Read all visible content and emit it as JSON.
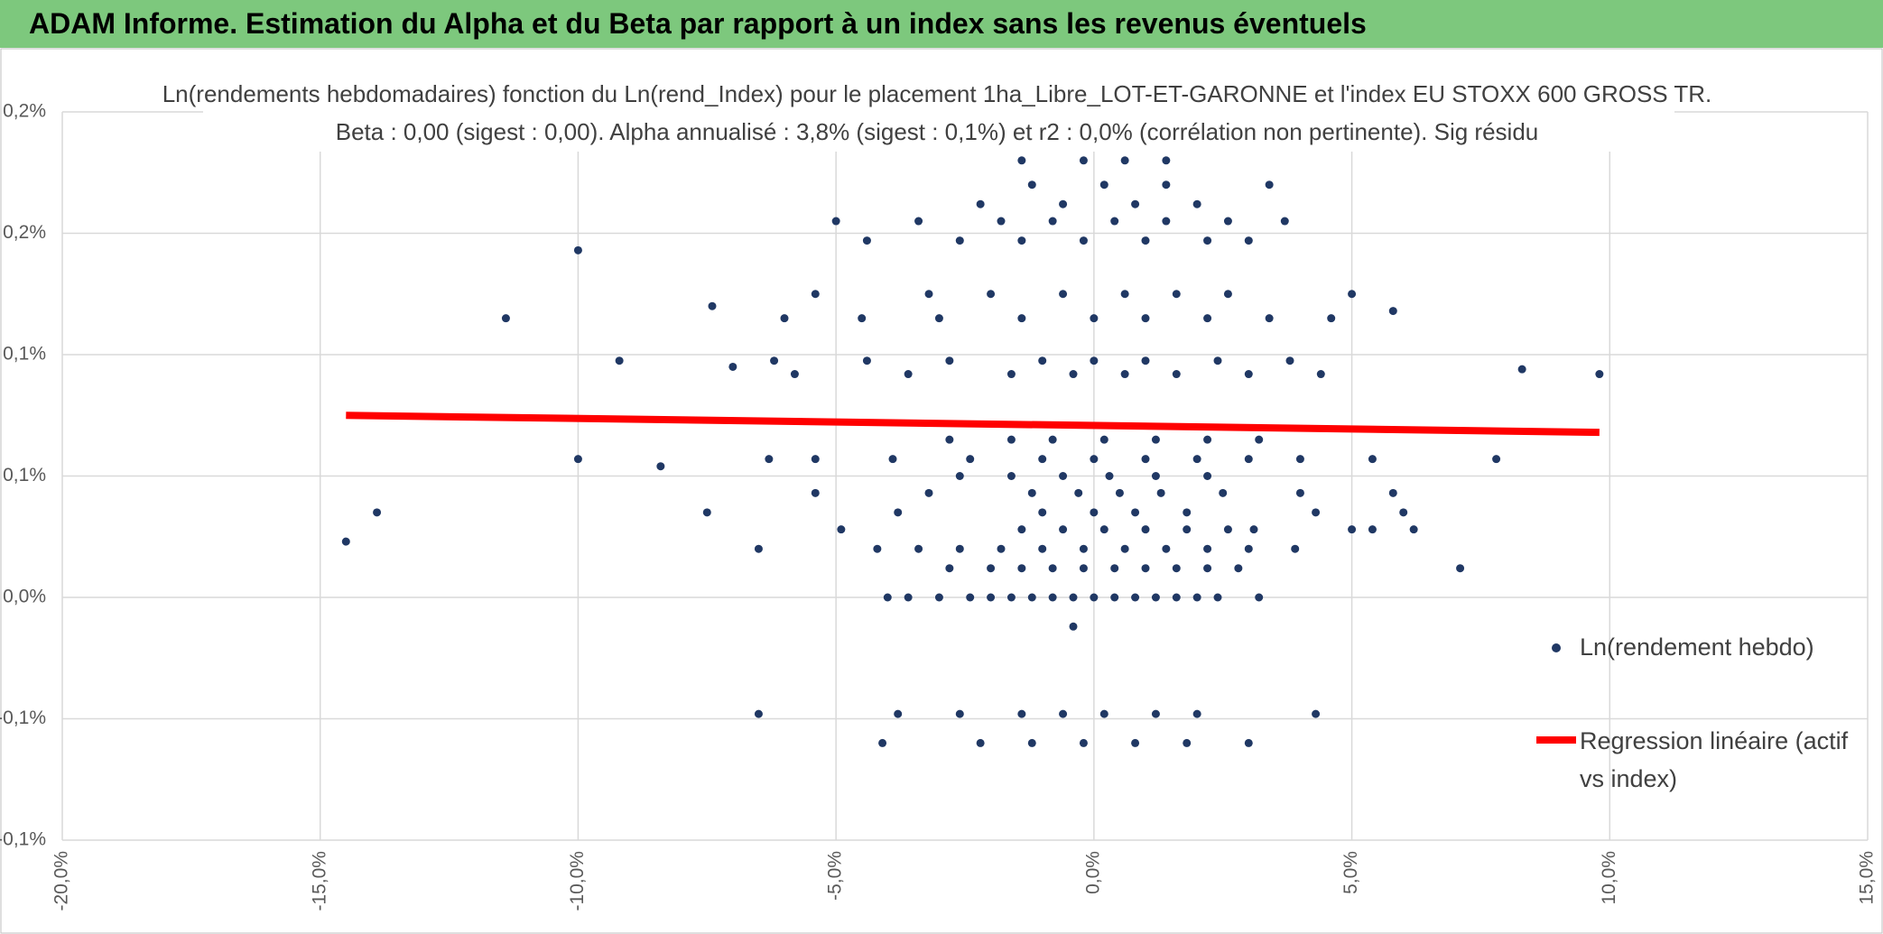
{
  "header": {
    "title": "ADAM Informe. Estimation du Alpha et du Beta par rapport à un index sans les revenus éventuels"
  },
  "chart_data": {
    "type": "scatter",
    "title": "Ln(rendements hebdomadaires) fonction du Ln(rend_Index) pour le placement 1ha_Libre_LOT-ET-GARONNE et l'index EU STOXX 600 GROSS TR.",
    "subtitle": "Beta : 0,00 (sigest : 0,00). Alpha annualisé : 3,8% (sigest : 0,1%) et r2 : 0,0% (corrélation non pertinente). Sig résidu",
    "xlim": [
      -20,
      15
    ],
    "xticks": [
      {
        "value": -20,
        "label": "-20,0%"
      },
      {
        "value": -15,
        "label": "-15,0%"
      },
      {
        "value": -10,
        "label": "-10,0%"
      },
      {
        "value": -5,
        "label": "-5,0%"
      },
      {
        "value": 0,
        "label": "0,0%"
      },
      {
        "value": 5,
        "label": "5,0%"
      },
      {
        "value": 10,
        "label": "10,0%"
      },
      {
        "value": 15,
        "label": "15,0%"
      }
    ],
    "ylim": [
      -0.1,
      0.2
    ],
    "yticks": [
      {
        "value": -0.1,
        "label": "-0,1%"
      },
      {
        "value": -0.05,
        "label": "-0,1%"
      },
      {
        "value": 0,
        "label": "0,0%"
      },
      {
        "value": 0.05,
        "label": "0,1%"
      },
      {
        "value": 0.1,
        "label": "0,1%"
      },
      {
        "value": 0.15,
        "label": "0,2%"
      },
      {
        "value": 0.2,
        "label": "0,2%"
      }
    ],
    "grid": true,
    "series": [
      {
        "name": "Ln(rendement hebdo)",
        "color": "#203864",
        "x": [
          -4,
          -3.6,
          -3,
          -2.4,
          -2,
          -1.6,
          -1.2,
          -0.8,
          -0.4,
          0,
          0.4,
          0.8,
          1.2,
          1.6,
          2,
          2.4,
          3.2,
          -2.8,
          -2,
          -1.4,
          -0.8,
          -0.2,
          0.4,
          1,
          1.6,
          2.2,
          2.8,
          7.1,
          -4.2,
          -3.4,
          -2.6,
          -1.8,
          -1,
          -0.2,
          0.6,
          1.4,
          2.2,
          3,
          3.9,
          -6.5,
          -1.4,
          -0.6,
          0.2,
          1,
          1.8,
          2.6,
          3.1,
          5,
          5.4,
          6.2,
          -4.9,
          -14.5,
          -13.9,
          -7.5,
          -3.8,
          -1,
          0,
          0.8,
          1.8,
          4.3,
          6,
          -5.4,
          -3.2,
          -1.2,
          -0.3,
          0.5,
          1.3,
          2.5,
          4,
          5.8,
          -2.6,
          -1.6,
          -0.6,
          0.3,
          1.2,
          2.2,
          -10,
          -8.4,
          -6.3,
          -5.4,
          -3.9,
          -2.4,
          -1,
          0,
          1,
          2,
          3,
          4,
          5.4,
          7.8,
          -2.8,
          -1.6,
          -0.8,
          0.2,
          1.2,
          2.2,
          3.2,
          -5.8,
          -3.6,
          -1.6,
          -0.4,
          0.6,
          1.6,
          3,
          4.4,
          9.8,
          8.3,
          -9.2,
          -7,
          -6.2,
          -4.4,
          -2.8,
          -1,
          0,
          1,
          2.4,
          3.8,
          -11.4,
          -6,
          -4.5,
          -3,
          -1.4,
          0,
          1,
          2.2,
          3.4,
          4.6,
          5.8,
          -7.4,
          -5.4,
          -3.2,
          -2,
          -0.6,
          0.6,
          1.6,
          2.6,
          5,
          -10,
          -4.4,
          -2.6,
          -1.4,
          -0.2,
          1,
          2.2,
          3,
          -5,
          -3.4,
          -1.8,
          -0.8,
          0.4,
          1.4,
          2.6,
          3.7,
          -2.2,
          -0.6,
          0.8,
          2,
          3.4,
          -1.2,
          0.2,
          1.4,
          -1.4,
          -0.2,
          0.6,
          1.4,
          -0.4,
          -6.5,
          -3.8,
          -2.6,
          -1.4,
          -0.6,
          0.2,
          1.2,
          2,
          4.3,
          -4.1,
          -2.2,
          -1.2,
          -0.2,
          0.8,
          1.8,
          3
        ],
        "values": [
          0,
          0,
          0,
          0,
          0,
          0,
          0,
          0,
          0,
          0,
          0,
          0,
          0,
          0,
          0,
          0,
          0,
          0.012,
          0.012,
          0.012,
          0.012,
          0.012,
          0.012,
          0.012,
          0.012,
          0.012,
          0.012,
          0.012,
          0.02,
          0.02,
          0.02,
          0.02,
          0.02,
          0.02,
          0.02,
          0.02,
          0.02,
          0.02,
          0.02,
          0.02,
          0.028,
          0.028,
          0.028,
          0.028,
          0.028,
          0.028,
          0.028,
          0.028,
          0.028,
          0.028,
          0.028,
          0.023,
          0.035,
          0.035,
          0.035,
          0.035,
          0.035,
          0.035,
          0.035,
          0.035,
          0.035,
          0.043,
          0.043,
          0.043,
          0.043,
          0.043,
          0.043,
          0.043,
          0.043,
          0.043,
          0.05,
          0.05,
          0.05,
          0.05,
          0.05,
          0.05,
          0.057,
          0.054,
          0.057,
          0.057,
          0.057,
          0.057,
          0.057,
          0.057,
          0.057,
          0.057,
          0.057,
          0.057,
          0.057,
          0.057,
          0.065,
          0.065,
          0.065,
          0.065,
          0.065,
          0.065,
          0.065,
          0.092,
          0.092,
          0.092,
          0.092,
          0.092,
          0.092,
          0.092,
          0.092,
          0.092,
          0.094,
          0.0975,
          0.095,
          0.0975,
          0.0975,
          0.0975,
          0.0975,
          0.0975,
          0.0975,
          0.0975,
          0.0975,
          0.115,
          0.115,
          0.115,
          0.115,
          0.115,
          0.115,
          0.115,
          0.115,
          0.115,
          0.115,
          0.118,
          0.12,
          0.125,
          0.125,
          0.125,
          0.125,
          0.125,
          0.125,
          0.125,
          0.125,
          0.143,
          0.147,
          0.147,
          0.147,
          0.147,
          0.147,
          0.147,
          0.147,
          0.155,
          0.155,
          0.155,
          0.155,
          0.155,
          0.155,
          0.155,
          0.155,
          0.162,
          0.162,
          0.162,
          0.162,
          0.17,
          0.17,
          0.17,
          0.17,
          0.18,
          0.18,
          0.18,
          0.18,
          -0.012,
          -0.048,
          -0.048,
          -0.048,
          -0.048,
          -0.048,
          -0.048,
          -0.048,
          -0.048,
          -0.048,
          -0.06,
          -0.06,
          -0.06,
          -0.06,
          -0.06,
          -0.06,
          -0.06
        ]
      },
      {
        "name": "Regression linéaire (actif vs index)",
        "color": "#ff0000",
        "type": "line",
        "x": [
          -14.5,
          9.8
        ],
        "values": [
          0.075,
          0.068
        ]
      }
    ]
  }
}
